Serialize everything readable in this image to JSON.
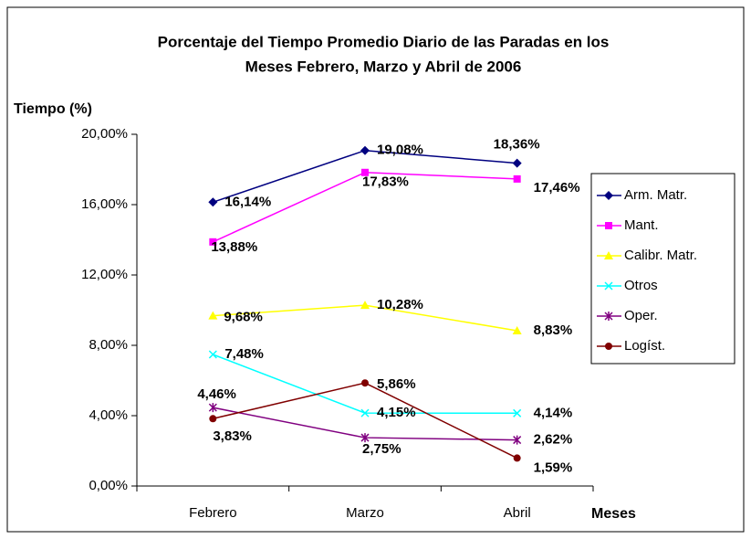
{
  "chart_data": {
    "type": "line",
    "title": [
      "Porcentaje del Tiempo Promedio Diario de las Paradas en los",
      "Meses Febrero, Marzo y Abril de 2006"
    ],
    "y_label": "Tiempo (%)",
    "x_label": "Meses",
    "categories": [
      "Febrero",
      "Marzo",
      "Abril"
    ],
    "ylim": [
      0,
      20
    ],
    "yticks": [
      {
        "value": 0,
        "label": "0,00%"
      },
      {
        "value": 4,
        "label": "4,00%"
      },
      {
        "value": 8,
        "label": "8,00%"
      },
      {
        "value": 12,
        "label": "12,00%"
      },
      {
        "value": 16,
        "label": "16,00%"
      },
      {
        "value": 20,
        "label": "20,00%"
      }
    ],
    "legend": "right",
    "series": [
      {
        "name": "Arm. Matr.",
        "color": "#000080",
        "marker": "diamond",
        "values": [
          16.14,
          19.08,
          18.36
        ],
        "value_labels": [
          "16,14%",
          "19,08%",
          "18,36%"
        ]
      },
      {
        "name": "Mant.",
        "color": "#ff00ff",
        "marker": "square",
        "values": [
          13.88,
          17.83,
          17.46
        ],
        "value_labels": [
          "13,88%",
          "17,83%",
          "17,46%"
        ]
      },
      {
        "name": "Calibr. Matr.",
        "color": "#ffff00",
        "marker": "triangle",
        "values": [
          9.68,
          10.28,
          8.83
        ],
        "value_labels": [
          "9,68%",
          "10,28%",
          "8,83%"
        ]
      },
      {
        "name": "Otros",
        "color": "#00ffff",
        "marker": "x",
        "values": [
          7.48,
          4.15,
          4.14
        ],
        "value_labels": [
          "7,48%",
          "4,15%",
          "4,14%"
        ]
      },
      {
        "name": "Oper.",
        "color": "#800080",
        "marker": "star",
        "values": [
          4.46,
          2.75,
          2.62
        ],
        "value_labels": [
          "4,46%",
          "2,75%",
          "2,62%"
        ]
      },
      {
        "name": "Logíst.",
        "color": "#800000",
        "marker": "circle",
        "values": [
          3.83,
          5.86,
          1.59
        ],
        "value_labels": [
          "3,83%",
          "5,86%",
          "1,59%"
        ]
      }
    ]
  }
}
